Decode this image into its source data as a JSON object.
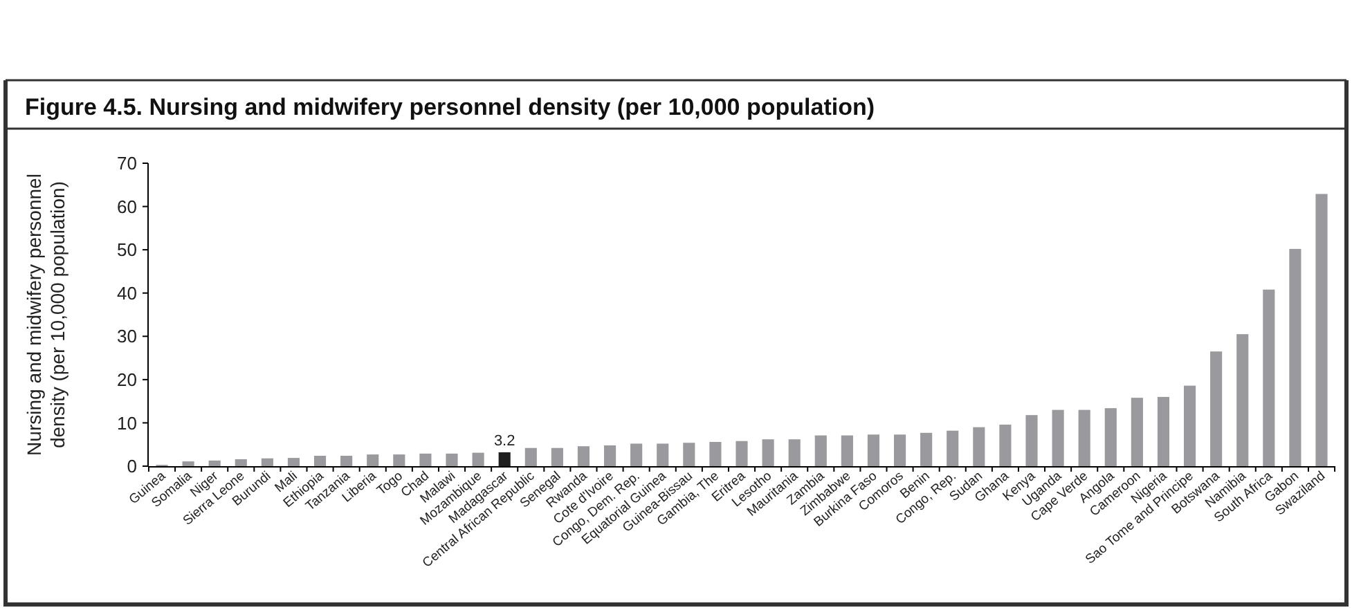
{
  "chart_data": {
    "type": "bar",
    "title": "Figure 4.5. Nursing and midwifery personnel density (per 10,000 population)",
    "ylabel": "Nursing and midwifery personnel density (per 10,000 population)",
    "categories": [
      "Guinea",
      "Somalia",
      "Niger",
      "Sierra Leone",
      "Burundi",
      "Mali",
      "Ethiopia",
      "Tanzania",
      "Liberia",
      "Togo",
      "Chad",
      "Malawi",
      "Mozambique",
      "Madagascar",
      "Central African Republic",
      "Senegal",
      "Rwanda",
      "Cote d'Ivoire",
      "Congo, Dem. Rep.",
      "Equatorial Guinea",
      "Guinea-Bissau",
      "Gambia, The",
      "Eritrea",
      "Lesotho",
      "Mauritania",
      "Zambia",
      "Zimbabwe",
      "Burkina Faso",
      "Comoros",
      "Benin",
      "Congo, Rep.",
      "Sudan",
      "Ghana",
      "Kenya",
      "Uganda",
      "Cape Verde",
      "Angola",
      "Cameroon",
      "Nigeria",
      "Sao Tome and Principe",
      "Botswana",
      "Namibia",
      "South Africa",
      "Gabon",
      "Swaziland"
    ],
    "values": [
      0.3,
      1.1,
      1.3,
      1.6,
      1.8,
      1.9,
      2.4,
      2.4,
      2.7,
      2.7,
      2.9,
      2.9,
      3.1,
      3.2,
      4.2,
      4.2,
      4.6,
      4.8,
      5.2,
      5.2,
      5.4,
      5.6,
      5.8,
      6.2,
      6.2,
      7.1,
      7.1,
      7.3,
      7.3,
      7.7,
      8.2,
      9.0,
      9.6,
      11.8,
      13.0,
      13.0,
      13.4,
      15.8,
      16.0,
      18.6,
      26.5,
      30.5,
      40.8,
      50.2,
      62.9
    ],
    "colors": [
      "#9a9a9e",
      "#9a9a9e",
      "#9a9a9e",
      "#9a9a9e",
      "#9a9a9e",
      "#9a9a9e",
      "#9a9a9e",
      "#9a9a9e",
      "#9a9a9e",
      "#9a9a9e",
      "#9a9a9e",
      "#9a9a9e",
      "#9a9a9e",
      "#1f1f1f",
      "#9a9a9e",
      "#9a9a9e",
      "#9a9a9e",
      "#9a9a9e",
      "#9a9a9e",
      "#9a9a9e",
      "#9a9a9e",
      "#9a9a9e",
      "#9a9a9e",
      "#9a9a9e",
      "#9a9a9e",
      "#9a9a9e",
      "#9a9a9e",
      "#9a9a9e",
      "#9a9a9e",
      "#9a9a9e",
      "#9a9a9e",
      "#9a9a9e",
      "#9a9a9e",
      "#9a9a9e",
      "#9a9a9e",
      "#9a9a9e",
      "#9a9a9e",
      "#9a9a9e",
      "#9a9a9e",
      "#9a9a9e",
      "#9a9a9e",
      "#9a9a9e",
      "#9a9a9e",
      "#9a9a9e",
      "#9a9a9e"
    ],
    "value_labels": [
      null,
      null,
      null,
      null,
      null,
      null,
      null,
      null,
      null,
      null,
      null,
      null,
      null,
      "3.2",
      null,
      null,
      null,
      null,
      null,
      null,
      null,
      null,
      null,
      null,
      null,
      null,
      null,
      null,
      null,
      null,
      null,
      null,
      null,
      null,
      null,
      null,
      null,
      null,
      null,
      null,
      null,
      null,
      null,
      null,
      null
    ],
    "ylim": [
      0,
      70
    ],
    "yticks": [
      0,
      10,
      20,
      30,
      40,
      50,
      60,
      70
    ],
    "grid": false
  }
}
